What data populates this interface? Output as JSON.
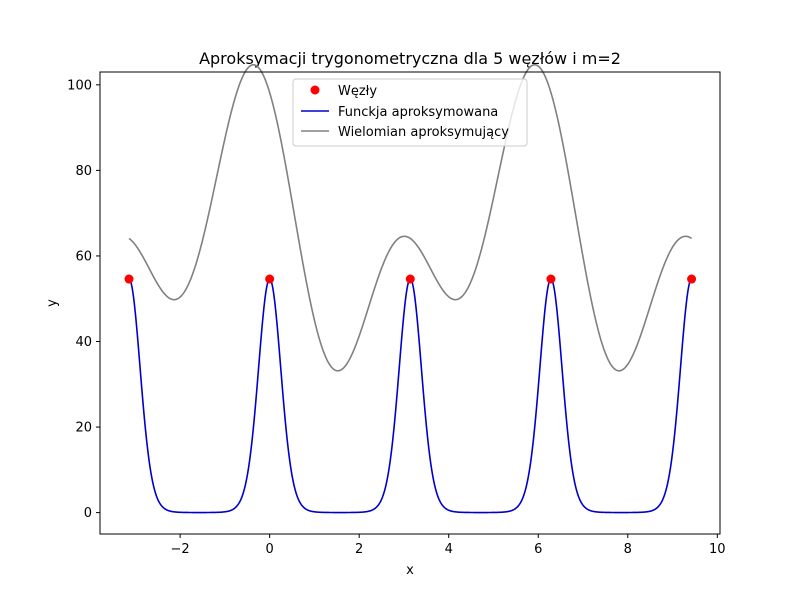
{
  "chart_data": {
    "type": "line",
    "title": "Aproksymacji trygonometryczna dla 5 węzłów i m=2",
    "xlabel": "x",
    "ylabel": "y",
    "xlim": [
      -3.79,
      10.06
    ],
    "ylim": [
      -5,
      103
    ],
    "xticks": [
      -2,
      0,
      2,
      4,
      6,
      8,
      10
    ],
    "yticks": [
      0,
      20,
      40,
      60,
      80,
      100
    ],
    "xtick_labels": [
      "−2",
      "0",
      "2",
      "4",
      "6",
      "8",
      "10"
    ],
    "ytick_labels": [
      "0",
      "20",
      "40",
      "60",
      "80",
      "100"
    ],
    "grid": false,
    "legend_position": "top-center",
    "series": [
      {
        "name": "Węzły",
        "kind": "scatter",
        "color": "#ff0000",
        "x": [
          -3.1416,
          0.0,
          3.1416,
          6.2832,
          9.4248
        ],
        "y": [
          54.6,
          54.6,
          54.6,
          54.6,
          54.6
        ]
      },
      {
        "name": "Funckja aproksymowana",
        "kind": "line",
        "color": "#0000cd",
        "function": "exp(4*cos(2*x))",
        "domain": [
          -3.1416,
          9.4248
        ]
      },
      {
        "name": "Wielomian aproksymujący",
        "kind": "line",
        "color": "#808080",
        "function": "64.09 + 17.05*cos(x) - 13.79*sin(x) + 17.05*cos(2*x) - 10.56*sin(2*x)",
        "domain": [
          -3.1416,
          9.4248
        ]
      }
    ]
  }
}
